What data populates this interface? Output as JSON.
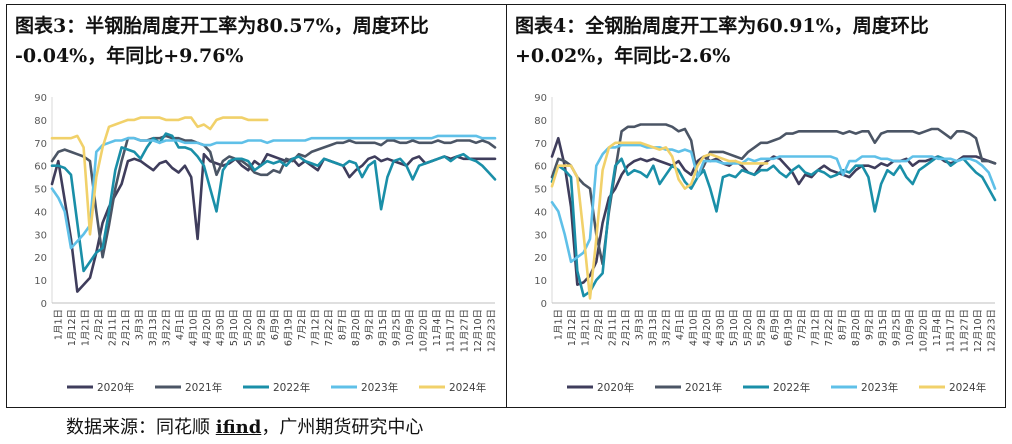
{
  "panels": [
    {
      "title_line1": "图表3：半钢胎周度开工率为80.57%，周度环比",
      "title_line2": "-0.04%，年同比+9.76%"
    },
    {
      "title_line1": "图表4：全钢胎周度开工率为60.91%，周度环比",
      "title_line2": "+0.02%，年同比-2.6%"
    }
  ],
  "source": {
    "prefix": "数据来源：同花顺 ",
    "brand": "ifind",
    "suffix": "，广州期货研究中心"
  },
  "chart_data": [
    {
      "type": "line",
      "ylim": [
        0,
        90
      ],
      "yticks": [
        0,
        10,
        20,
        30,
        40,
        50,
        60,
        70,
        80,
        90
      ],
      "x_ticklabels": [
        "1月1日",
        "1月12日",
        "1月21日",
        "2月2日",
        "2月11日",
        "2月21日",
        "3月3日",
        "3月13日",
        "3月22日",
        "4月1日",
        "4月10日",
        "4月20日",
        "4月30日",
        "5月10日",
        "5月20日",
        "5月29日",
        "6月9日",
        "6月19日",
        "7月2日",
        "7月12日",
        "7月22日",
        "8月7日",
        "8月20日",
        "9月2日",
        "9月15日",
        "9月25日",
        "10月9日",
        "10月20日",
        "11月4日",
        "11月17日",
        "11月27日",
        "12月10日",
        "12月23日"
      ],
      "series": [
        {
          "name": "2020年",
          "color": "#3f3d5c",
          "values": [
            52,
            62,
            45,
            28,
            5,
            8,
            11,
            22,
            35,
            42,
            47,
            52,
            62,
            63,
            62,
            60,
            58,
            61,
            62,
            59,
            57,
            60,
            55,
            28,
            65,
            62,
            61,
            60,
            61,
            63,
            60,
            58,
            62,
            60,
            65,
            64,
            63,
            62,
            63,
            60,
            62,
            60,
            58,
            63,
            62,
            61,
            60,
            55,
            58,
            60,
            63,
            64,
            62,
            63,
            62,
            61,
            60,
            63,
            64,
            61,
            62,
            63,
            64,
            63,
            64,
            63,
            63,
            63,
            63,
            63,
            63
          ]
        },
        {
          "name": "2021年",
          "color": "#4b5565",
          "values": [
            62,
            66,
            67,
            66,
            65,
            64,
            62,
            40,
            20,
            34,
            50,
            62,
            72,
            72,
            71,
            71,
            72,
            72,
            73,
            72,
            72,
            71,
            71,
            70,
            69,
            66,
            56,
            62,
            64,
            63,
            62,
            60,
            57,
            56,
            56,
            58,
            57,
            63,
            62,
            65,
            64,
            66,
            67,
            68,
            69,
            70,
            70,
            71,
            70,
            70,
            70,
            70,
            69,
            71,
            71,
            70,
            70,
            71,
            70,
            70,
            70,
            71,
            70,
            70,
            71,
            71,
            71,
            70,
            71,
            70,
            68
          ]
        },
        {
          "name": "2022年",
          "color": "#1a8fa8",
          "values": [
            60,
            60,
            59,
            56,
            35,
            14,
            18,
            22,
            24,
            40,
            58,
            68,
            67,
            66,
            63,
            68,
            72,
            70,
            74,
            73,
            68,
            68,
            67,
            64,
            60,
            50,
            40,
            58,
            62,
            63,
            63,
            62,
            58,
            60,
            62,
            61,
            62,
            60,
            63,
            64,
            62,
            61,
            60,
            63,
            62,
            61,
            60,
            62,
            61,
            55,
            60,
            62,
            41,
            55,
            62,
            63,
            60,
            54,
            60,
            61,
            62,
            63,
            64,
            62,
            64,
            65,
            63,
            62,
            60,
            57,
            54
          ]
        },
        {
          "name": "2023年",
          "color": "#5fc0e8",
          "values": [
            50,
            46,
            40,
            24,
            27,
            30,
            34,
            66,
            69,
            70,
            71,
            71,
            72,
            72,
            71,
            71,
            71,
            70,
            71,
            71,
            71,
            70,
            70,
            70,
            69,
            69,
            70,
            70,
            70,
            70,
            70,
            71,
            71,
            71,
            70,
            71,
            71,
            71,
            71,
            71,
            71,
            72,
            72,
            72,
            72,
            72,
            72,
            72,
            72,
            72,
            72,
            72,
            72,
            72,
            72,
            72,
            72,
            72,
            72,
            72,
            72,
            73,
            73,
            73,
            73,
            73,
            73,
            73,
            72,
            72,
            72
          ]
        },
        {
          "name": "2024年",
          "color": "#f1d16a",
          "values": [
            72,
            72,
            72,
            72,
            73,
            68,
            30,
            55,
            68,
            77,
            78,
            79,
            80,
            80,
            81,
            81,
            81,
            81,
            80,
            80,
            80,
            81,
            81,
            77,
            78,
            76,
            80,
            81,
            81,
            81,
            81,
            80,
            80,
            80,
            80
          ]
        }
      ]
    },
    {
      "type": "line",
      "ylim": [
        0,
        90
      ],
      "yticks": [
        0,
        10,
        20,
        30,
        40,
        50,
        60,
        70,
        80,
        90
      ],
      "x_ticklabels": [
        "1月1日",
        "1月12日",
        "1月21日",
        "2月2日",
        "2月11日",
        "2月21日",
        "3月3日",
        "3月13日",
        "3月22日",
        "4月1日",
        "4月10日",
        "4月20日",
        "4月30日",
        "5月10日",
        "5月20日",
        "5月29日",
        "6月9日",
        "6月19日",
        "7月2日",
        "7月12日",
        "7月22日",
        "8月7日",
        "8月20日",
        "9月2日",
        "9月15日",
        "9月25日",
        "10月9日",
        "10月20日",
        "11月4日",
        "11月17日",
        "11月27日",
        "12月10日",
        "12月23日"
      ],
      "series": [
        {
          "name": "2020年",
          "color": "#3f3d5c",
          "values": [
            64,
            72,
            60,
            42,
            8,
            9,
            12,
            18,
            35,
            46,
            50,
            56,
            60,
            62,
            63,
            62,
            63,
            62,
            61,
            60,
            62,
            58,
            56,
            62,
            64,
            62,
            63,
            61,
            60,
            62,
            60,
            57,
            56,
            60,
            62,
            64,
            63,
            60,
            57,
            52,
            56,
            55,
            58,
            60,
            58,
            57,
            56,
            55,
            58,
            60,
            60,
            59,
            61,
            60,
            62,
            62,
            63,
            60,
            62,
            62,
            63,
            64,
            62,
            61,
            62,
            64,
            64,
            64,
            63,
            62,
            61
          ]
        },
        {
          "name": "2021年",
          "color": "#4b5565",
          "values": [
            55,
            63,
            62,
            60,
            55,
            52,
            50,
            30,
            17,
            40,
            58,
            75,
            77,
            77,
            78,
            78,
            78,
            78,
            78,
            77,
            75,
            76,
            71,
            55,
            60,
            66,
            66,
            66,
            65,
            64,
            63,
            66,
            68,
            70,
            70,
            71,
            72,
            74,
            74,
            75,
            75,
            75,
            75,
            75,
            75,
            75,
            74,
            75,
            74,
            75,
            75,
            70,
            74,
            75,
            75,
            75,
            75,
            75,
            74,
            75,
            76,
            76,
            74,
            72,
            75,
            75,
            74,
            72,
            62,
            62,
            61
          ]
        },
        {
          "name": "2022年",
          "color": "#1a8fa8",
          "values": [
            53,
            60,
            58,
            55,
            14,
            3,
            5,
            10,
            13,
            42,
            60,
            63,
            56,
            58,
            57,
            55,
            60,
            52,
            56,
            60,
            58,
            53,
            50,
            55,
            58,
            50,
            40,
            55,
            56,
            55,
            58,
            57,
            56,
            58,
            58,
            60,
            57,
            55,
            58,
            60,
            57,
            56,
            58,
            57,
            55,
            56,
            58,
            57,
            60,
            60,
            55,
            40,
            52,
            58,
            56,
            60,
            55,
            52,
            58,
            60,
            62,
            64,
            63,
            60,
            62,
            63,
            60,
            57,
            55,
            50,
            45
          ]
        },
        {
          "name": "2023年",
          "color": "#5fc0e8",
          "values": [
            44,
            40,
            30,
            18,
            20,
            22,
            28,
            60,
            65,
            68,
            68,
            69,
            69,
            69,
            69,
            68,
            68,
            68,
            67,
            67,
            66,
            67,
            66,
            55,
            62,
            62,
            62,
            61,
            61,
            61,
            61,
            63,
            62,
            63,
            63,
            63,
            64,
            64,
            64,
            64,
            64,
            64,
            64,
            64,
            64,
            63,
            56,
            62,
            62,
            64,
            64,
            64,
            63,
            63,
            62,
            62,
            62,
            64,
            64,
            64,
            64,
            63,
            63,
            63,
            62,
            63,
            63,
            62,
            60,
            57,
            50
          ]
        },
        {
          "name": "2024年",
          "color": "#f1d16a",
          "values": [
            51,
            60,
            60,
            60,
            55,
            30,
            2,
            28,
            58,
            68,
            70,
            70,
            70,
            70,
            70,
            69,
            68,
            67,
            68,
            64,
            54,
            50,
            52,
            60,
            64,
            65,
            64,
            63,
            62,
            62,
            61,
            61,
            61,
            61,
            61
          ]
        }
      ]
    }
  ]
}
